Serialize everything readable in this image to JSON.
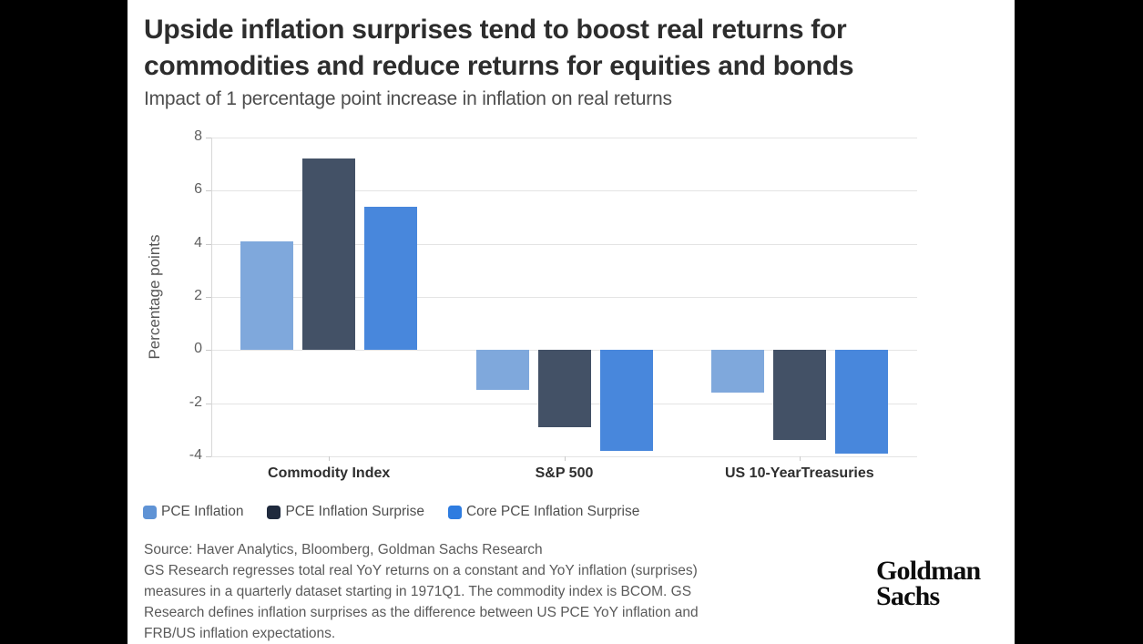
{
  "page": {
    "background_color": "#000000",
    "panel_color": "#ffffff"
  },
  "header": {
    "title_line1": "Upside inflation surprises tend to boost real returns for",
    "title_line2": "commodities and reduce returns for equities and bonds",
    "subtitle": "Impact of 1 percentage point increase in inflation on real returns"
  },
  "chart_data": {
    "type": "bar",
    "title": "Upside inflation surprises tend to boost real returns for commodities and reduce returns for equities and bonds",
    "subtitle": "Impact of 1 percentage point increase in inflation on real returns",
    "categories": [
      "Commodity Index",
      "S&P 500",
      "US 10-YearTreasuries"
    ],
    "series": [
      {
        "name": "PCE Inflation",
        "color": "#7fa8dc",
        "legend_color": "#5f93d5",
        "values": [
          4.1,
          -1.5,
          -1.6
        ]
      },
      {
        "name": "PCE Inflation Surprise",
        "color": "#435166",
        "legend_color": "#1f2a3d",
        "values": [
          7.2,
          -2.9,
          -3.4
        ]
      },
      {
        "name": "Core PCE Inflation Surprise",
        "color": "#4887dc",
        "legend_color": "#2e7ce0",
        "values": [
          5.4,
          -3.8,
          -3.9
        ]
      }
    ],
    "xlabel": "",
    "ylabel": "Percentage points",
    "ylim": [
      -4,
      8
    ],
    "yticks": [
      8,
      6,
      4,
      2,
      0,
      -2,
      -4
    ],
    "grid": true,
    "legend_position": "bottom"
  },
  "footer": {
    "source": "Source: Haver Analytics, Bloomberg, Goldman Sachs Research",
    "note_lines": [
      "GS Research regresses total real YoY returns on a constant and YoY inflation (surprises)",
      "measures in a quarterly dataset starting in 1971Q1. The commodity index is BCOM. GS",
      "Research defines inflation surprises as the difference between US PCE YoY inflation and",
      "FRB/US inflation expectations."
    ],
    "logo_line1": "Goldman",
    "logo_line2": "Sachs"
  }
}
